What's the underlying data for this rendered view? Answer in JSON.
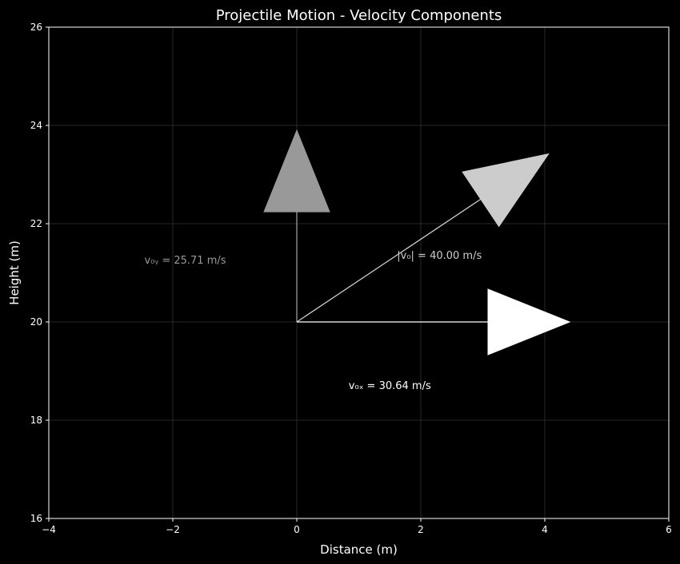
{
  "chart_data": {
    "type": "vector",
    "title": "Projectile Motion - Velocity Components",
    "xlabel": "Distance (m)",
    "ylabel": "Height (m)",
    "xlim": [
      -4,
      6
    ],
    "ylim": [
      16,
      26
    ],
    "x_ticks": [
      -4,
      -2,
      0,
      2,
      4,
      6
    ],
    "y_ticks": [
      16,
      18,
      20,
      22,
      24,
      26
    ],
    "grid": true,
    "origin": [
      0,
      20
    ],
    "vectors": [
      {
        "id": "vy",
        "dx": 0,
        "dy": 3.9,
        "color": "#999999",
        "label": "v₀ᵧ = 25.71 m/s",
        "label_x": -1.8,
        "label_y": 21.25,
        "label_color": "#999999"
      },
      {
        "id": "v",
        "dx": 4.06,
        "dy": 3.42,
        "color": "#cccccc",
        "label": "|v₀| = 40.00 m/s",
        "label_x": 2.3,
        "label_y": 21.35,
        "label_color": "#cccccc"
      },
      {
        "id": "vx",
        "dx": 4.4,
        "dy": 0,
        "color": "#ffffff",
        "label": "v₀ₓ = 30.64 m/s",
        "label_x": 1.5,
        "label_y": 18.7,
        "label_color": "#ffffff"
      }
    ],
    "colors": {
      "background": "#000000",
      "axes": "#ffffff",
      "grid": "#333333"
    }
  }
}
